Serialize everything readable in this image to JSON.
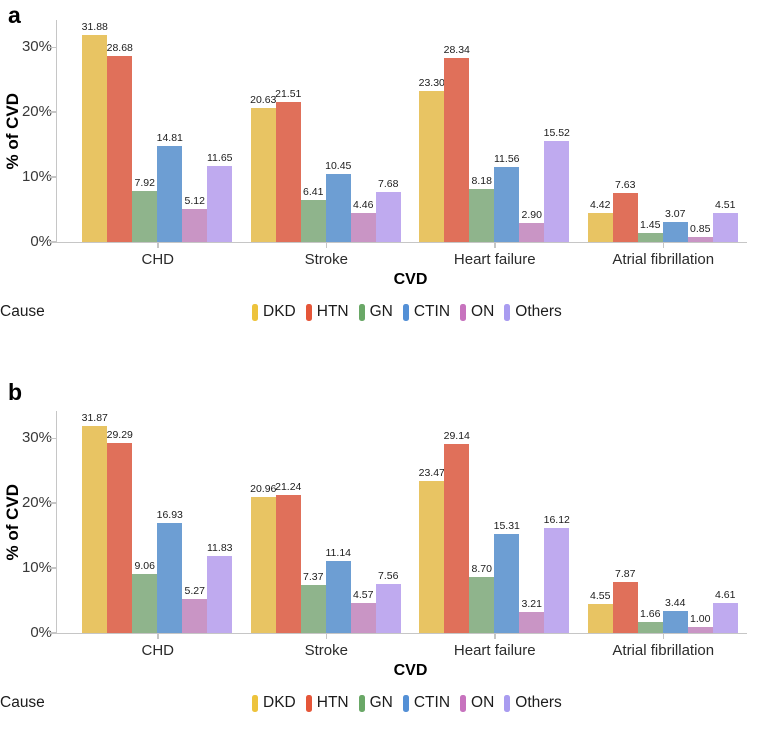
{
  "style": {
    "background": "#ffffff",
    "axis_color": "#c6c6c6",
    "tick_label_color": "#383838",
    "value_label_color": "#1c1c1c"
  },
  "chart_data": [
    {
      "type": "bar",
      "panel_label": "a",
      "title": "",
      "xlabel": "CVD",
      "ylabel": "% of CVD",
      "ylim": [
        0,
        34.2
      ],
      "yticks": [
        0,
        10,
        20,
        30
      ],
      "ytick_labels": [
        "0%",
        "10%",
        "20%",
        "30%"
      ],
      "grid": false,
      "legend_title": "Cause",
      "legend_position": "bottom",
      "categories": [
        "CHD",
        "Stroke",
        "Heart failure",
        "Atrial fibrillation"
      ],
      "series": [
        {
          "name": "DKD",
          "color": "#edc33c",
          "bar_color": "#e8c463",
          "values": [
            31.88,
            20.63,
            23.3,
            4.42
          ]
        },
        {
          "name": "HTN",
          "color": "#e55639",
          "bar_color": "#e0705a",
          "values": [
            28.68,
            21.51,
            28.34,
            7.63
          ]
        },
        {
          "name": "GN",
          "color": "#6aa867",
          "bar_color": "#8fb48c",
          "values": [
            7.92,
            6.41,
            8.18,
            1.45
          ]
        },
        {
          "name": "CTIN",
          "color": "#5490d6",
          "bar_color": "#6d9ed3",
          "values": [
            14.81,
            10.45,
            11.56,
            3.07
          ]
        },
        {
          "name": "ON",
          "color": "#c773be",
          "bar_color": "#c995c5",
          "values": [
            5.12,
            4.46,
            2.9,
            0.85
          ]
        },
        {
          "name": "Others",
          "color": "#a99cf0",
          "bar_color": "#bfaaef",
          "values": [
            11.65,
            7.68,
            15.52,
            4.51
          ]
        }
      ]
    },
    {
      "type": "bar",
      "panel_label": "b",
      "title": "",
      "xlabel": "CVD",
      "ylabel": "% of CVD",
      "ylim": [
        0,
        34.2
      ],
      "yticks": [
        0,
        10,
        20,
        30
      ],
      "ytick_labels": [
        "0%",
        "10%",
        "20%",
        "30%"
      ],
      "grid": false,
      "legend_title": "Cause",
      "legend_position": "bottom",
      "categories": [
        "CHD",
        "Stroke",
        "Heart failure",
        "Atrial fibrillation"
      ],
      "series": [
        {
          "name": "DKD",
          "color": "#edc33c",
          "bar_color": "#e8c463",
          "values": [
            31.87,
            20.96,
            23.47,
            4.55
          ]
        },
        {
          "name": "HTN",
          "color": "#e55639",
          "bar_color": "#e0705a",
          "values": [
            29.29,
            21.24,
            29.14,
            7.87
          ]
        },
        {
          "name": "GN",
          "color": "#6aa867",
          "bar_color": "#8fb48c",
          "values": [
            9.06,
            7.37,
            8.7,
            1.66
          ]
        },
        {
          "name": "CTIN",
          "color": "#5490d6",
          "bar_color": "#6d9ed3",
          "values": [
            16.93,
            11.14,
            15.31,
            3.44
          ]
        },
        {
          "name": "ON",
          "color": "#c773be",
          "bar_color": "#c995c5",
          "values": [
            5.27,
            4.57,
            3.21,
            1.0
          ]
        },
        {
          "name": "Others",
          "color": "#a99cf0",
          "bar_color": "#bfaaef",
          "values": [
            11.83,
            7.56,
            16.12,
            4.61
          ]
        }
      ]
    }
  ]
}
